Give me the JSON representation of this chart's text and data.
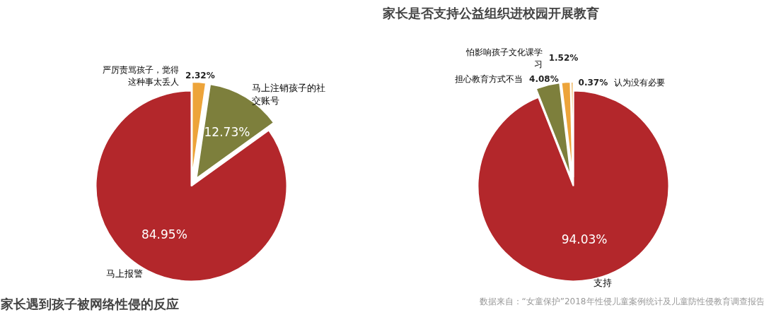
{
  "chart_data": [
    {
      "type": "pie",
      "title": "家长遇到孩子被网络性侵的反应",
      "categories": [
        "严厉责骂孩子，觉得这种事太丢人",
        "马上注销孩子的社交账号",
        "马上报警"
      ],
      "values": [
        2.32,
        12.73,
        84.95
      ],
      "colors": [
        "#eda43a",
        "#7d7f3c",
        "#b3272b"
      ],
      "value_labels": [
        "2.32%",
        "12.73%",
        "84.95%"
      ]
    },
    {
      "type": "pie",
      "title": "家长是否支持公益组织进校园开展教育",
      "categories": [
        "支持",
        "担心教育方式不当",
        "怕影响孩子文化课学习",
        "认为没有必要"
      ],
      "values": [
        94.03,
        4.08,
        1.52,
        0.37
      ],
      "colors": [
        "#b3272b",
        "#7d7f3c",
        "#eda43a",
        "#e89a20"
      ],
      "value_labels": [
        "94.03%",
        "4.08%",
        "1.52%",
        "0.37%"
      ],
      "annotations": [
        "数据来自：“女童保护”2018年性侵儿童案例统计及儿童防性侵教育调查报告"
      ]
    }
  ]
}
